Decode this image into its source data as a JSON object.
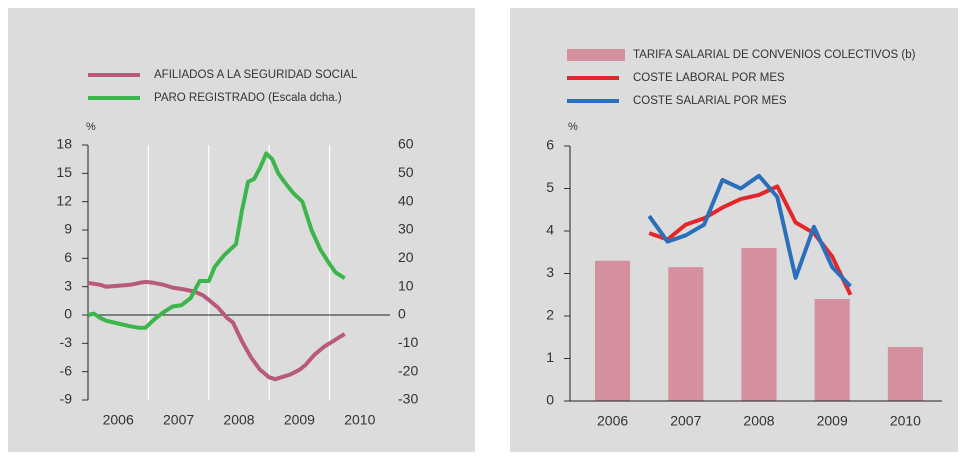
{
  "chart_data": [
    {
      "type": "line",
      "ylabel": "%",
      "xlim": [
        2006,
        2011
      ],
      "xticks": [
        {
          "value": 2006.5,
          "label": "2006"
        },
        {
          "value": 2007.5,
          "label": "2007"
        },
        {
          "value": 2008.5,
          "label": "2008"
        },
        {
          "value": 2009.5,
          "label": "2009"
        },
        {
          "value": 2010.5,
          "label": "2010"
        }
      ],
      "xgrid": [
        2007,
        2008,
        2009,
        2010
      ],
      "ylim": [
        -9,
        18
      ],
      "yticks": [
        -9,
        -6,
        -3,
        0,
        3,
        6,
        9,
        12,
        15,
        18
      ],
      "y2lim": [
        -30,
        60
      ],
      "y2ticks": [
        -30,
        -20,
        -10,
        0,
        10,
        20,
        30,
        40,
        50,
        60
      ],
      "series": [
        {
          "name": "AFILIADOS A LA SEGURIDAD SOCIAL",
          "color": "#b85a7a",
          "x": [
            2006.0,
            2006.1,
            2006.2,
            2006.3,
            2006.5,
            2006.7,
            2006.85,
            2006.95,
            2007.1,
            2007.25,
            2007.4,
            2007.6,
            2007.75,
            2007.9,
            2008.0,
            2008.15,
            2008.3,
            2008.4,
            2008.55,
            2008.7,
            2008.85,
            2009.0,
            2009.1,
            2009.2,
            2009.35,
            2009.5,
            2009.6,
            2009.75,
            2009.9,
            2010.05,
            2010.25
          ],
          "values": [
            3.4,
            3.3,
            3.2,
            3.0,
            3.1,
            3.2,
            3.4,
            3.5,
            3.4,
            3.2,
            2.9,
            2.7,
            2.5,
            2.1,
            1.6,
            0.8,
            -0.3,
            -0.8,
            -2.8,
            -4.5,
            -5.8,
            -6.6,
            -6.8,
            -6.6,
            -6.3,
            -5.8,
            -5.3,
            -4.2,
            -3.4,
            -2.8,
            -2.0
          ]
        },
        {
          "name": "PARO REGISTRADO (Escala dcha.)",
          "color": "#3cb54a",
          "axis": "y2",
          "x": [
            2006.0,
            2006.1,
            2006.2,
            2006.3,
            2006.5,
            2006.7,
            2006.85,
            2006.95,
            2007.1,
            2007.25,
            2007.4,
            2007.55,
            2007.7,
            2007.85,
            2008.0,
            2008.1,
            2008.25,
            2008.35,
            2008.45,
            2008.55,
            2008.65,
            2008.75,
            2008.85,
            2008.95,
            2009.05,
            2009.15,
            2009.25,
            2009.4,
            2009.55,
            2009.7,
            2009.85,
            2010.0,
            2010.1,
            2010.25
          ],
          "values": [
            0,
            0.5,
            -1,
            -2,
            -3,
            -4,
            -4.5,
            -4.5,
            -1.5,
            1,
            3,
            3.5,
            6,
            12,
            12,
            17,
            21,
            23,
            25,
            37,
            47,
            48,
            52,
            57,
            55,
            50,
            47,
            43,
            40,
            30,
            23,
            18,
            15,
            13
          ]
        }
      ]
    },
    {
      "type": "bar",
      "ylabel": "%",
      "xlim": [
        2006,
        2011
      ],
      "xticks": [
        {
          "value": 2006.5,
          "label": "2006"
        },
        {
          "value": 2007.5,
          "label": "2007"
        },
        {
          "value": 2008.5,
          "label": "2008"
        },
        {
          "value": 2009.5,
          "label": "2009"
        },
        {
          "value": 2010.5,
          "label": "2010"
        }
      ],
      "ylim": [
        0,
        6
      ],
      "yticks": [
        0,
        1,
        2,
        3,
        4,
        5,
        6
      ],
      "series": [
        {
          "name": "TARIFA SALARIAL DE CONVENIOS COLECTIVOS (b)",
          "type": "bar",
          "color": "#d4909f",
          "x": [
            2006.5,
            2007.5,
            2008.5,
            2009.5,
            2010.5
          ],
          "values": [
            3.3,
            3.15,
            3.6,
            2.4,
            1.27
          ]
        },
        {
          "name": "COSTE LABORAL POR MES",
          "type": "line",
          "color": "#e3262b",
          "x": [
            2007,
            2007.25,
            2007.5,
            2007.75,
            2008,
            2008.25,
            2008.5,
            2008.75,
            2009,
            2009.25,
            2009.5,
            2009.75
          ],
          "values": [
            3.95,
            3.8,
            4.15,
            4.3,
            4.55,
            4.75,
            4.85,
            5.05,
            4.2,
            3.95,
            3.4,
            2.5
          ]
        },
        {
          "name": "COSTE SALARIAL POR MES",
          "type": "line",
          "color": "#2a6fba",
          "x": [
            2007,
            2007.25,
            2007.5,
            2007.75,
            2008,
            2008.25,
            2008.5,
            2008.75,
            2009,
            2009.25,
            2009.5,
            2009.75
          ],
          "values": [
            4.35,
            3.75,
            3.9,
            4.15,
            5.2,
            5.0,
            5.3,
            4.8,
            2.9,
            4.1,
            3.15,
            2.7
          ]
        }
      ]
    }
  ]
}
